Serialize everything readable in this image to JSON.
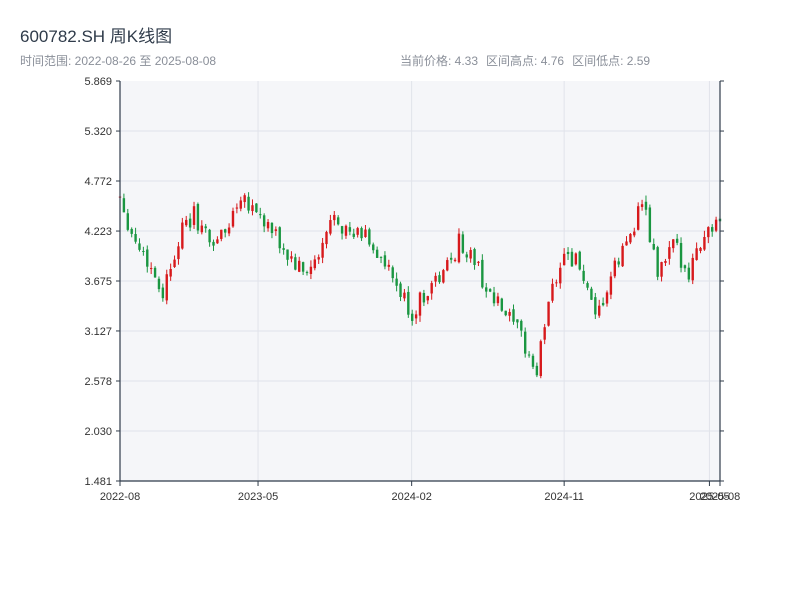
{
  "header": {
    "title": "600782.SH 周K线图",
    "subtitle": "时间范围: 2022-08-26 至 2025-08-08",
    "summary": {
      "current_price": "当前价格: 4.33",
      "range_high": "区间高点: 4.76",
      "range_low": "区间低点: 2.59"
    }
  },
  "colors": {
    "up": "#d7191c",
    "down": "#1a9641",
    "plot_background": "#f5f6f9",
    "grid": "#e0e3ea",
    "axis": "#2f3b4a"
  },
  "chart_data": {
    "type": "candlestick",
    "title": "600782.SH 周K线图",
    "x_range": [
      "2022-08-26",
      "2025-08-08"
    ],
    "ylim": [
      1.481,
      5.869
    ],
    "y_ticks": [
      "5.869",
      "5.320",
      "4.772",
      "4.223",
      "3.675",
      "3.127",
      "2.578",
      "2.030",
      "1.481"
    ],
    "x_ticks": [
      "2022-08",
      "2023-05",
      "2024-02",
      "2024-11",
      "2025-05",
      "2025-08"
    ],
    "x_tick_dates": [
      "2022-08-26",
      "2023-05-01",
      "2024-02-01",
      "2024-11-01",
      "2025-07-20",
      "2025-08-08"
    ],
    "current_price": 4.33,
    "range_high": 4.76,
    "range_low": 2.59,
    "weekly_ohlc": [
      [
        "2022-08-26",
        4.62
      ],
      [
        "2022-09-16",
        4.2
      ],
      [
        "2022-10-14",
        3.9
      ],
      [
        "2022-11-11",
        3.55
      ],
      [
        "2022-12-09",
        4.15
      ],
      [
        "2023-01-06",
        4.4
      ],
      [
        "2023-02-03",
        4.1
      ],
      [
        "2023-03-03",
        4.2
      ],
      [
        "2023-03-31",
        4.65
      ],
      [
        "2023-04-28",
        4.45
      ],
      [
        "2023-05-26",
        4.2
      ],
      [
        "2023-06-23",
        3.95
      ],
      [
        "2023-07-21",
        3.75
      ],
      [
        "2023-08-18",
        3.9
      ],
      [
        "2023-09-15",
        4.45
      ],
      [
        "2023-10-13",
        4.15
      ],
      [
        "2023-11-10",
        4.2
      ],
      [
        "2023-12-08",
        3.9
      ],
      [
        "2024-01-05",
        3.6
      ],
      [
        "2024-02-02",
        3.3
      ],
      [
        "2024-03-01",
        3.6
      ],
      [
        "2024-03-29",
        3.75
      ],
      [
        "2024-04-26",
        4.1
      ],
      [
        "2024-05-24",
        3.9
      ],
      [
        "2024-06-21",
        3.5
      ],
      [
        "2024-07-19",
        3.3
      ],
      [
        "2024-08-16",
        3.05
      ],
      [
        "2024-09-13",
        2.65
      ],
      [
        "2024-10-04",
        3.5
      ],
      [
        "2024-11-01",
        4.0
      ],
      [
        "2024-11-29",
        3.85
      ],
      [
        "2024-12-27",
        3.2
      ],
      [
        "2025-01-24",
        3.7
      ],
      [
        "2025-02-21",
        4.1
      ],
      [
        "2025-03-21",
        4.55
      ],
      [
        "2025-04-18",
        3.75
      ],
      [
        "2025-05-16",
        4.05
      ],
      [
        "2025-06-13",
        3.8
      ],
      [
        "2025-07-11",
        4.2
      ],
      [
        "2025-08-08",
        4.33
      ]
    ]
  }
}
